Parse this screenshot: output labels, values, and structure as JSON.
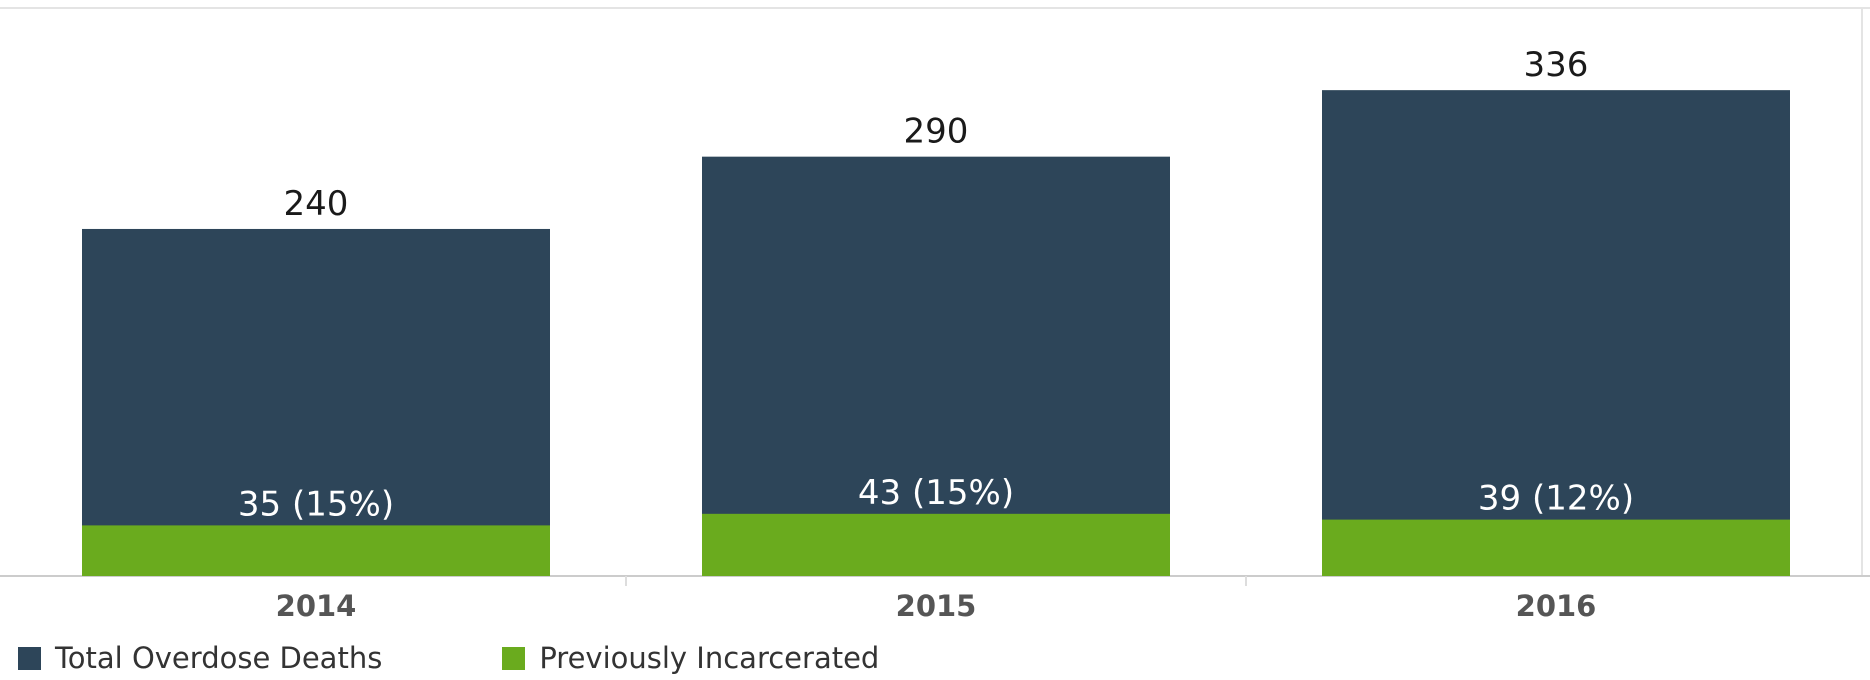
{
  "chart_data": {
    "type": "bar",
    "stacked": "overlay",
    "categories": [
      "2014",
      "2015",
      "2016"
    ],
    "series": [
      {
        "name": "Total Overdose Deaths",
        "values": [
          240,
          290,
          336
        ],
        "color": "#2d4559",
        "labels": [
          "240",
          "290",
          "336"
        ]
      },
      {
        "name": "Previously Incarcerated",
        "values": [
          35,
          43,
          39
        ],
        "color": "#6aab1e",
        "labels": [
          "35 (15%)",
          "43 (15%)",
          "39 (12%)"
        ]
      }
    ],
    "ylim": [
      0,
      360
    ],
    "grid": false,
    "legend_position": "bottom-left"
  }
}
